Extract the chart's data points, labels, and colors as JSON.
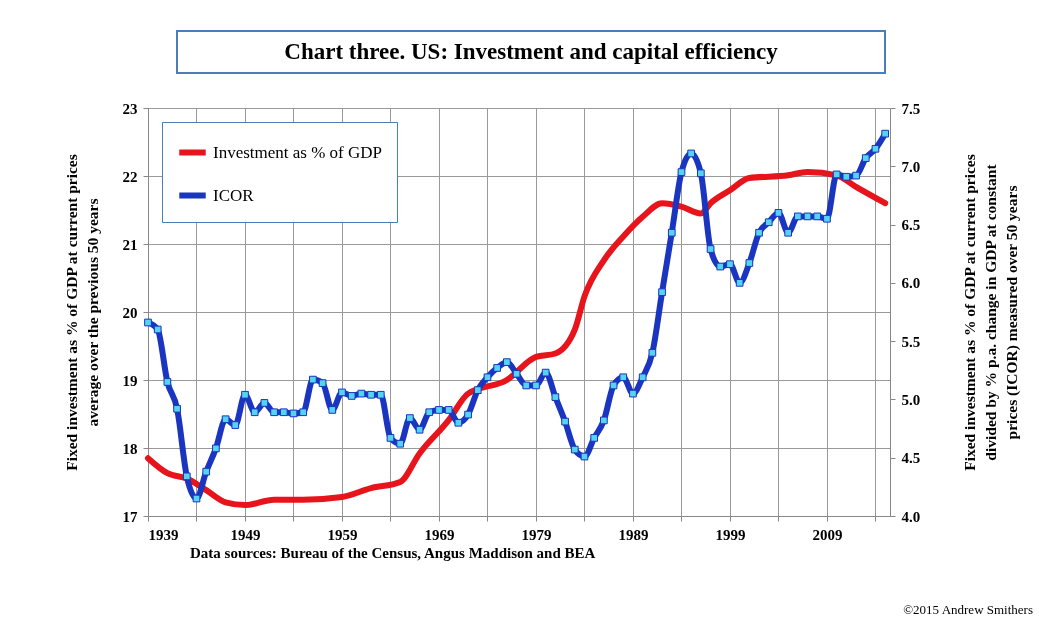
{
  "chart_data": {
    "type": "line",
    "title": "Chart three. US: Investment and capital efficiency",
    "ylabel": "Fixed investment as % of GDP at current prices\naverage over the previous 50 years",
    "y2label": "Fixed investment as % of GDP at current prices\ndivided by % p.a. change in GDP at constant\nprices (ICOR) measured over 50 years",
    "annotations": [
      "Data sources: Bureau of the Census, Angus Maddison and BEA",
      "©2015 Andrew Smithers"
    ],
    "series": [
      {
        "name": "Investment as % of GDP",
        "color": "#e8141b",
        "marker": "none",
        "x": [
          1939,
          1941,
          1943,
          1945,
          1947,
          1949,
          1952,
          1955,
          1959,
          1962,
          1965,
          1967,
          1970,
          1972,
          1976,
          1979,
          1981,
          1983,
          1984,
          1986,
          1988,
          1990,
          1992,
          1994,
          1996,
          1997,
          1999,
          2001,
          2005,
          2007,
          2010,
          2012,
          2015
        ],
        "values": [
          17.85,
          17.63,
          17.55,
          17.38,
          17.2,
          17.16,
          17.24,
          17.24,
          17.28,
          17.41,
          17.5,
          17.92,
          18.41,
          18.8,
          19.0,
          19.34,
          19.39,
          19.74,
          20.23,
          20.76,
          21.11,
          21.4,
          21.6,
          21.55,
          21.45,
          21.6,
          21.79,
          21.97,
          22.01,
          22.06,
          22.01,
          21.84,
          21.6
        ]
      },
      {
        "name": "ICOR",
        "color": "#1a35c0",
        "marker": "square",
        "axis": "y2",
        "x": [
          1939,
          1940,
          1941,
          1942,
          1943,
          1944,
          1945,
          1946,
          1947,
          1948,
          1949,
          1950,
          1951,
          1952,
          1953,
          1954,
          1955,
          1956,
          1957,
          1958,
          1959,
          1960,
          1961,
          1962,
          1963,
          1964,
          1965,
          1966,
          1967,
          1968,
          1969,
          1970,
          1971,
          1972,
          1973,
          1974,
          1975,
          1976,
          1977,
          1978,
          1979,
          1980,
          1981,
          1982,
          1983,
          1984,
          1985,
          1986,
          1987,
          1988,
          1989,
          1990,
          1991,
          1992,
          1993,
          1994,
          1995,
          1996,
          1997,
          1998,
          1999,
          2000,
          2001,
          2002,
          2003,
          2004,
          2005,
          2006,
          2007,
          2008,
          2009,
          2010,
          2011,
          2012,
          2013,
          2014,
          2015
        ],
        "values": [
          5.66,
          5.6,
          5.15,
          4.92,
          4.34,
          4.15,
          4.38,
          4.58,
          4.83,
          4.78,
          5.04,
          4.89,
          4.97,
          4.89,
          4.89,
          4.88,
          4.89,
          5.17,
          5.14,
          4.91,
          5.06,
          5.03,
          5.05,
          5.04,
          5.04,
          4.67,
          4.62,
          4.84,
          4.74,
          4.89,
          4.91,
          4.91,
          4.8,
          4.87,
          5.08,
          5.19,
          5.27,
          5.32,
          5.22,
          5.12,
          5.12,
          5.23,
          5.02,
          4.81,
          4.57,
          4.51,
          4.67,
          4.82,
          5.12,
          5.19,
          5.05,
          5.19,
          5.4,
          5.92,
          6.43,
          6.95,
          7.11,
          6.94,
          6.29,
          6.14,
          6.16,
          6.0,
          6.17,
          6.43,
          6.52,
          6.6,
          6.43,
          6.57,
          6.57,
          6.57,
          6.55,
          6.93,
          6.91,
          6.92,
          7.07,
          7.15,
          7.28
        ]
      }
    ],
    "xlim": [
      1939,
      2015.5
    ],
    "xticks": [
      1939,
      {
        "value": 1944,
        "label": null
      },
      1949,
      {
        "value": 1954,
        "label": null
      },
      1959,
      {
        "value": 1964,
        "label": null
      },
      1969,
      {
        "value": 1974,
        "label": null
      },
      1979,
      {
        "value": 1984,
        "label": null
      },
      1989,
      {
        "value": 1994,
        "label": null
      },
      1999,
      {
        "value": 2004,
        "label": null
      },
      2009,
      {
        "value": 2014,
        "label": null
      }
    ],
    "ylim": [
      17,
      23
    ],
    "yticks": [
      17,
      18,
      19,
      20,
      21,
      22,
      23
    ],
    "y2lim": [
      4,
      7.5
    ],
    "y2ticks": [
      {
        "value": 4,
        "label": "4.0"
      },
      4.5,
      {
        "value": 5,
        "label": "5.0"
      },
      5.5,
      {
        "value": 6,
        "label": "6.0"
      },
      6.5,
      {
        "value": 7,
        "label": "7.0"
      },
      7.5
    ],
    "grid": true,
    "legend": "top left",
    "line_style": "solid"
  }
}
